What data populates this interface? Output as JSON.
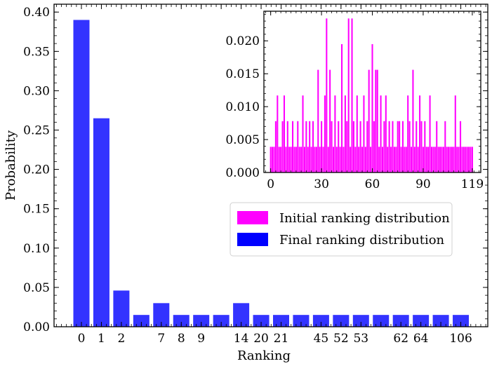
{
  "chart_data": [
    {
      "type": "bar",
      "xlabel": "Ranking",
      "ylabel": "Probability",
      "ylim": [
        0,
        0.41
      ],
      "yticks": [
        "0.00",
        "0.05",
        "0.10",
        "0.15",
        "0.20",
        "0.25",
        "0.30",
        "0.35",
        "0.40"
      ],
      "categories": [
        "0",
        "1",
        "2",
        "",
        "7",
        "8",
        "9",
        "",
        "14",
        "20",
        "21",
        "",
        "45",
        "52",
        "53",
        "",
        "62",
        "64",
        "",
        "106"
      ],
      "series": [
        {
          "color": "#0000ff",
          "values": [
            0.39,
            0.265,
            0.046,
            0.015,
            0.03,
            0.015,
            0.015,
            0.015,
            0.03,
            0.015,
            0.015,
            0.015,
            0.015,
            0.015,
            0.015,
            0.015,
            0.015,
            0.015,
            0.015,
            0.015
          ]
        }
      ],
      "legend": {
        "placement": "center-right",
        "entries": [
          {
            "label": "Initial ranking distribution",
            "color": "#ff00ff"
          },
          {
            "label": "Final ranking distribution",
            "color": "#0000ff"
          }
        ]
      }
    },
    {
      "type": "bar",
      "inset": true,
      "xlim": [
        -4,
        124
      ],
      "ylim": [
        0,
        0.0245
      ],
      "xticks": [
        "0",
        "30",
        "60",
        "90",
        "119"
      ],
      "xtick_values": [
        0,
        30,
        60,
        90,
        119
      ],
      "yticks": [
        "0.000",
        "0.005",
        "0.010",
        "0.015",
        "0.020"
      ],
      "series": [
        {
          "color": "#ff00ff",
          "x_start": 0,
          "values": [
            0.0039,
            0.0039,
            0.0039,
            0.0078,
            0.0117,
            0.0039,
            0.0039,
            0.0078,
            0.0117,
            0.0039,
            0.0078,
            0.0039,
            0.0039,
            0.0078,
            0.0039,
            0.0039,
            0.0078,
            0.0039,
            0.0039,
            0.0117,
            0.0039,
            0.0078,
            0.0039,
            0.0078,
            0.0039,
            0.0078,
            0.0039,
            0.0039,
            0.0156,
            0.0039,
            0.0078,
            0.0039,
            0.0117,
            0.0234,
            0.0039,
            0.0156,
            0.0078,
            0.0039,
            0.0117,
            0.0039,
            0.0078,
            0.0039,
            0.0195,
            0.0039,
            0.0117,
            0.0078,
            0.0234,
            0.0039,
            0.0234,
            0.0078,
            0.0039,
            0.0117,
            0.0039,
            0.0078,
            0.0039,
            0.0117,
            0.0039,
            0.0078,
            0.0156,
            0.0039,
            0.0195,
            0.0078,
            0.0156,
            0.0156,
            0.0039,
            0.0117,
            0.0039,
            0.0078,
            0.0117,
            0.0039,
            0.0078,
            0.0039,
            0.0078,
            0.0039,
            0.0039,
            0.0078,
            0.0078,
            0.0039,
            0.0078,
            0.0039,
            0.0039,
            0.0117,
            0.0078,
            0.0039,
            0.0156,
            0.0039,
            0.0078,
            0.0039,
            0.0117,
            0.0078,
            0.0039,
            0.0078,
            0.0039,
            0.0039,
            0.0117,
            0.0039,
            0.0039,
            0.0039,
            0.0078,
            0.0039,
            0.0039,
            0.0039,
            0.0039,
            0.0078,
            0.0039,
            0.0039,
            0.0039,
            0.0039,
            0.0039,
            0.0117,
            0.0039,
            0.0039,
            0.0078,
            0.0039,
            0.0039,
            0.0039,
            0.0039,
            0.0039,
            0.0039,
            0.0039
          ]
        }
      ]
    }
  ]
}
